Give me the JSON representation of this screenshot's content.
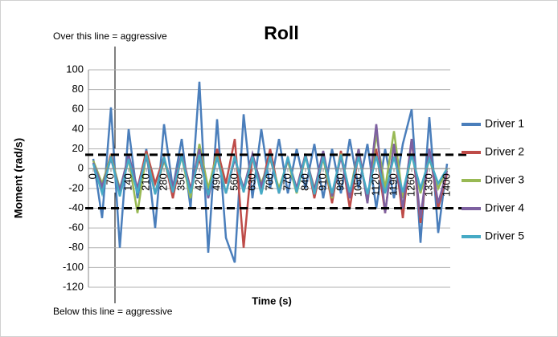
{
  "chart_data": {
    "type": "line",
    "title": "Roll",
    "x_label": "Time (s)",
    "y_label": "Moment (rad/s)",
    "x": [
      0,
      35,
      70,
      105,
      140,
      175,
      210,
      245,
      280,
      315,
      350,
      385,
      420,
      455,
      490,
      525,
      560,
      595,
      630,
      665,
      700,
      735,
      770,
      805,
      840,
      875,
      910,
      945,
      980,
      1015,
      1050,
      1085,
      1120,
      1155,
      1190,
      1225,
      1260,
      1295,
      1330,
      1365,
      1400
    ],
    "xlim": [
      0,
      1400
    ],
    "xticks": [
      0,
      70,
      140,
      210,
      280,
      350,
      420,
      490,
      560,
      630,
      700,
      770,
      840,
      910,
      980,
      1050,
      1120,
      1190,
      1260,
      1330,
      1400
    ],
    "ylim": [
      -120,
      100
    ],
    "yticks": [
      -120,
      -100,
      -80,
      -60,
      -40,
      -20,
      0,
      20,
      40,
      60,
      80,
      100
    ],
    "grid": true,
    "legend": "right",
    "series": [
      {
        "name": "Driver 1",
        "color": "#4a7ebb",
        "values": [
          10,
          -50,
          62,
          -80,
          40,
          -30,
          20,
          -60,
          45,
          -20,
          30,
          -40,
          88,
          -85,
          50,
          -70,
          -95,
          55,
          -30,
          40,
          -20,
          30,
          -25,
          20,
          -20,
          25,
          -30,
          20,
          -25,
          30,
          -20,
          25,
          -40,
          20,
          -30,
          25,
          60,
          -75,
          52,
          -65,
          5
        ]
      },
      {
        "name": "Driver 2",
        "color": "#be4b48",
        "values": [
          5,
          -20,
          15,
          -25,
          10,
          -20,
          18,
          -15,
          12,
          -30,
          15,
          -20,
          10,
          -25,
          20,
          -15,
          30,
          -80,
          15,
          -20,
          20,
          -25,
          10,
          -20,
          15,
          -30,
          12,
          -35,
          18,
          -40,
          15,
          -30,
          20,
          -45,
          25,
          -50,
          30,
          -55,
          20,
          -40,
          -5
        ]
      },
      {
        "name": "Driver 3",
        "color": "#98b954",
        "values": [
          8,
          -15,
          12,
          -20,
          10,
          -45,
          15,
          -25,
          8,
          -20,
          12,
          -30,
          25,
          -20,
          15,
          -25,
          10,
          -20,
          12,
          -15,
          10,
          -20,
          8,
          -25,
          12,
          -20,
          10,
          -30,
          15,
          -25,
          20,
          -35,
          35,
          -20,
          38,
          -30,
          15,
          -25,
          10,
          -20,
          0
        ]
      },
      {
        "name": "Driver 4",
        "color": "#7d60a0",
        "values": [
          6,
          -18,
          10,
          -22,
          14,
          -20,
          12,
          -25,
          10,
          -18,
          15,
          -22,
          20,
          -30,
          12,
          -25,
          10,
          -20,
          15,
          -18,
          12,
          -25,
          10,
          -20,
          14,
          -22,
          18,
          -28,
          12,
          -30,
          20,
          -35,
          45,
          -45,
          25,
          -40,
          30,
          -50,
          20,
          -35,
          -2
        ]
      },
      {
        "name": "Driver 5",
        "color": "#46aac5",
        "values": [
          5,
          -25,
          12,
          -28,
          10,
          -25,
          14,
          -26,
          12,
          -24,
          13,
          -25,
          14,
          -27,
          12,
          -25,
          13,
          -24,
          12,
          -26,
          13,
          -25,
          12,
          -24,
          13,
          -26,
          12,
          -25,
          14,
          -24,
          12,
          -26,
          13,
          -25,
          12,
          -24,
          14,
          -20,
          10,
          -15,
          0
        ]
      }
    ],
    "reference_lines": [
      {
        "value": 14,
        "label": "Over this line = aggressive"
      },
      {
        "value": -40,
        "label": "Below this line = aggressive"
      }
    ]
  }
}
